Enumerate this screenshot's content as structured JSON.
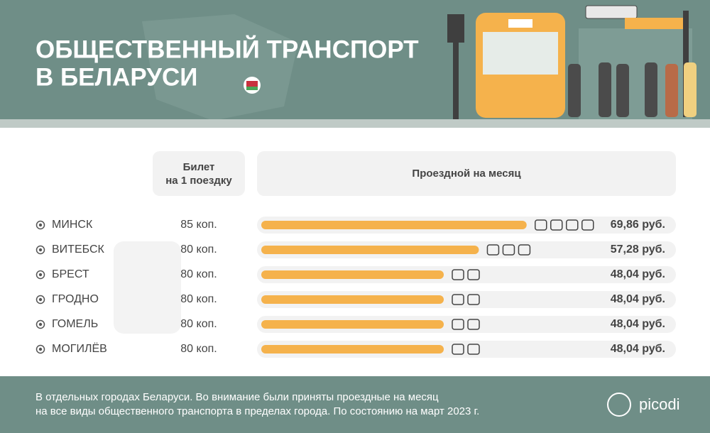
{
  "header": {
    "title": [
      "ОБЩЕСТВЕННЫЙ ТРАНСПОРТ",
      "В БЕЛАРУСИ"
    ]
  },
  "chart_data": {
    "type": "bar",
    "orientation": "horizontal",
    "column_headers": [
      [
        "Билет",
        "на 1 поездку"
      ],
      [
        "Проездной на месяц"
      ]
    ],
    "categories": [
      "МИНСК",
      "ВИТЕБСК",
      "БРЕСТ",
      "ГРОДНО",
      "ГОМЕЛЬ",
      "МОГИЛЁВ"
    ],
    "ticket_labels": [
      "85 коп.",
      "80 коп.",
      "80 коп.",
      "80 коп.",
      "80 коп.",
      "80 коп."
    ],
    "values": [
      69.86,
      57.28,
      48.04,
      48.04,
      48.04,
      48.04
    ],
    "value_labels": [
      "69,86 руб.",
      "57,28 руб.",
      "48,04 руб.",
      "48,04 руб.",
      "48,04 руб.",
      "48,04 руб."
    ],
    "color": "#f5b24c",
    "xlim": [
      0,
      80
    ]
  },
  "footer": {
    "note": [
      "В отдельных городах Беларуси. Во внимание были приняты проездные на месяц",
      "на все виды общественного транспорта в пределах города. По состоянию на март 2023 г."
    ],
    "brand": "picodi"
  }
}
